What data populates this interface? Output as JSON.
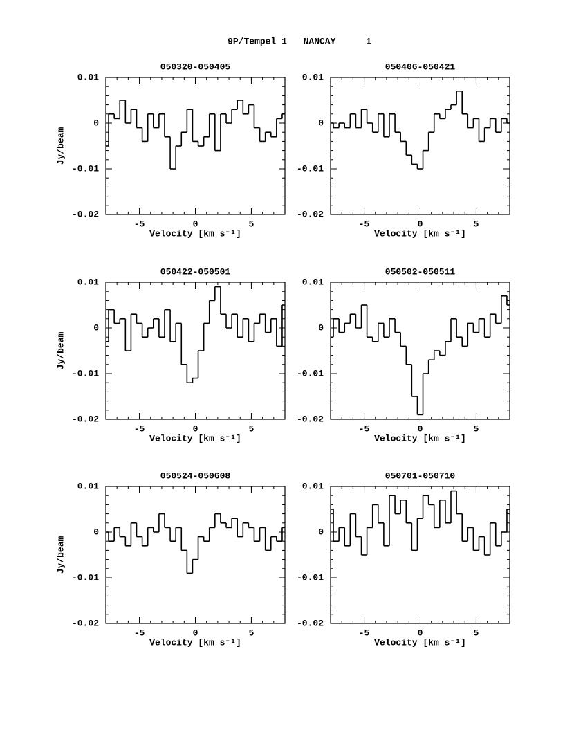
{
  "header": {
    "object": "9P/Tempel 1",
    "site": "NANCAY",
    "page": "1"
  },
  "chart_data": [
    {
      "type": "step",
      "title": "050320-050405",
      "xlabel": "Velocity [km s⁻¹]",
      "ylabel": "Jy/beam",
      "x": [
        -8,
        -7.5,
        -7,
        -6.5,
        -6,
        -5.5,
        -5,
        -4.5,
        -4,
        -3.5,
        -3,
        -2.5,
        -2,
        -1.5,
        -1,
        -0.5,
        0,
        0.5,
        1,
        1.5,
        2,
        2.5,
        3,
        3.5,
        4,
        4.5,
        5,
        5.5,
        6,
        6.5,
        7,
        7.5,
        8
      ],
      "values": [
        -0.005,
        0.002,
        0.001,
        0.005,
        0,
        0.003,
        -0.001,
        -0.004,
        0.002,
        -0.001,
        0.002,
        -0.003,
        -0.01,
        -0.005,
        -0.002,
        0.003,
        -0.004,
        -0.005,
        -0.003,
        0.002,
        -0.006,
        0.002,
        0,
        0.003,
        0.005,
        0.002,
        0.004,
        -0.001,
        -0.004,
        -0.002,
        -0.003,
        0.001,
        0.002
      ],
      "xlim": [
        -8,
        8
      ],
      "ylim": [
        -0.02,
        0.01
      ],
      "xticks": [
        -5,
        0,
        5
      ],
      "yticks": [
        -0.02,
        -0.01,
        0,
        0.01
      ],
      "color": "#000000"
    },
    {
      "type": "step",
      "title": "050406-050421",
      "xlabel": "Velocity [km s⁻¹]",
      "x": [
        -8,
        -7.5,
        -7,
        -6.5,
        -6,
        -5.5,
        -5,
        -4.5,
        -4,
        -3.5,
        -3,
        -2.5,
        -2,
        -1.5,
        -1,
        -0.5,
        0,
        0.5,
        1,
        1.5,
        2,
        2.5,
        3,
        3.5,
        4,
        4.5,
        5,
        5.5,
        6,
        6.5,
        7,
        7.5,
        8
      ],
      "values": [
        0,
        -0.001,
        0,
        -0.001,
        0.002,
        -0.001,
        0.003,
        0,
        -0.002,
        0.002,
        -0.003,
        0.002,
        -0.002,
        -0.004,
        -0.007,
        -0.009,
        -0.01,
        -0.006,
        -0.002,
        0.002,
        0.001,
        0.003,
        0.004,
        0.007,
        0.002,
        -0.001,
        0.001,
        -0.004,
        -0.001,
        0.001,
        -0.002,
        0.001,
        0
      ],
      "xlim": [
        -8,
        8
      ],
      "ylim": [
        -0.02,
        0.01
      ],
      "xticks": [
        -5,
        0,
        5
      ],
      "yticks": [
        -0.02,
        -0.01,
        0,
        0.01
      ],
      "color": "#000000"
    },
    {
      "type": "step",
      "title": "050422-050501",
      "xlabel": "Velocity [km s⁻¹]",
      "ylabel": "Jy/beam",
      "x": [
        -8,
        -7.5,
        -7,
        -6.5,
        -6,
        -5.5,
        -5,
        -4.5,
        -4,
        -3.5,
        -3,
        -2.5,
        -2,
        -1.5,
        -1,
        -0.5,
        0,
        0.5,
        1,
        1.5,
        2,
        2.5,
        3,
        3.5,
        4,
        4.5,
        5,
        5.5,
        6,
        6.5,
        7,
        7.5,
        8
      ],
      "values": [
        -0.003,
        0.004,
        0.001,
        0.002,
        -0.005,
        0.003,
        0.001,
        -0.002,
        0,
        0.002,
        -0.002,
        0.004,
        -0.003,
        0.001,
        -0.008,
        -0.012,
        -0.011,
        -0.005,
        0.001,
        0.006,
        0.009,
        0.003,
        0,
        0.003,
        -0.002,
        0.002,
        -0.003,
        0.001,
        0.003,
        -0.001,
        0.002,
        -0.004,
        0.005
      ],
      "xlim": [
        -8,
        8
      ],
      "ylim": [
        -0.02,
        0.01
      ],
      "xticks": [
        -5,
        0,
        5
      ],
      "yticks": [
        -0.02,
        -0.01,
        0,
        0.01
      ],
      "color": "#000000"
    },
    {
      "type": "step",
      "title": "050502-050511",
      "xlabel": "Velocity [km s⁻¹]",
      "x": [
        -8,
        -7.5,
        -7,
        -6.5,
        -6,
        -5.5,
        -5,
        -4.5,
        -4,
        -3.5,
        -3,
        -2.5,
        -2,
        -1.5,
        -1,
        -0.5,
        0,
        0.5,
        1,
        1.5,
        2,
        2.5,
        3,
        3.5,
        4,
        4.5,
        5,
        5.5,
        6,
        6.5,
        7,
        7.5,
        8
      ],
      "values": [
        -0.002,
        0.002,
        -0.001,
        0.001,
        0.003,
        0,
        0.005,
        -0.002,
        -0.003,
        0.001,
        -0.002,
        0.002,
        -0.001,
        -0.004,
        -0.008,
        -0.015,
        -0.019,
        -0.01,
        -0.007,
        -0.005,
        -0.006,
        -0.003,
        0.002,
        -0.002,
        -0.004,
        0.001,
        -0.001,
        0.002,
        -0.002,
        0.003,
        0.001,
        0.007,
        0.005
      ],
      "xlim": [
        -8,
        8
      ],
      "ylim": [
        -0.02,
        0.01
      ],
      "xticks": [
        -5,
        0,
        5
      ],
      "yticks": [
        -0.02,
        -0.01,
        0,
        0.01
      ],
      "color": "#000000"
    },
    {
      "type": "step",
      "title": "050524-050608",
      "xlabel": "Velocity [km s⁻¹]",
      "ylabel": "Jy/beam",
      "x": [
        -8,
        -7.5,
        -7,
        -6.5,
        -6,
        -5.5,
        -5,
        -4.5,
        -4,
        -3.5,
        -3,
        -2.5,
        -2,
        -1.5,
        -1,
        -0.5,
        0,
        0.5,
        1,
        1.5,
        2,
        2.5,
        3,
        3.5,
        4,
        4.5,
        5,
        5.5,
        6,
        6.5,
        7,
        7.5,
        8
      ],
      "values": [
        0,
        -0.002,
        0.001,
        -0.001,
        -0.003,
        0.002,
        -0.001,
        -0.003,
        0.001,
        0,
        0.004,
        0.001,
        -0.002,
        0.001,
        -0.004,
        -0.009,
        -0.006,
        -0.001,
        -0.002,
        0.001,
        0.004,
        0.002,
        0.001,
        0.003,
        -0.001,
        0.002,
        0.001,
        -0.002,
        0.001,
        -0.004,
        -0.001,
        -0.002,
        0.001
      ],
      "xlim": [
        -8,
        8
      ],
      "ylim": [
        -0.02,
        0.01
      ],
      "xticks": [
        -5,
        0,
        5
      ],
      "yticks": [
        -0.02,
        -0.01,
        0,
        0.01
      ],
      "color": "#000000"
    },
    {
      "type": "step",
      "title": "050701-050710",
      "xlabel": "Velocity [km s⁻¹]",
      "x": [
        -8,
        -7.5,
        -7,
        -6.5,
        -6,
        -5.5,
        -5,
        -4.5,
        -4,
        -3.5,
        -3,
        -2.5,
        -2,
        -1.5,
        -1,
        -0.5,
        0,
        0.5,
        1,
        1.5,
        2,
        2.5,
        3,
        3.5,
        4,
        4.5,
        5,
        5.5,
        6,
        6.5,
        7,
        7.5,
        8
      ],
      "values": [
        0.005,
        -0.002,
        0.001,
        -0.003,
        0.004,
        -0.001,
        -0.005,
        0.001,
        0.006,
        0.002,
        -0.003,
        0.008,
        0.004,
        0.007,
        0.002,
        -0.004,
        0.003,
        0.008,
        0.006,
        0.001,
        0.007,
        0.002,
        0.009,
        0.004,
        -0.002,
        0.001,
        -0.004,
        -0.001,
        -0.005,
        0.002,
        -0.003,
        0,
        0.005
      ],
      "xlim": [
        -8,
        8
      ],
      "ylim": [
        -0.02,
        0.01
      ],
      "xticks": [
        -5,
        0,
        5
      ],
      "yticks": [
        -0.02,
        -0.01,
        0,
        0.01
      ],
      "color": "#000000"
    }
  ]
}
